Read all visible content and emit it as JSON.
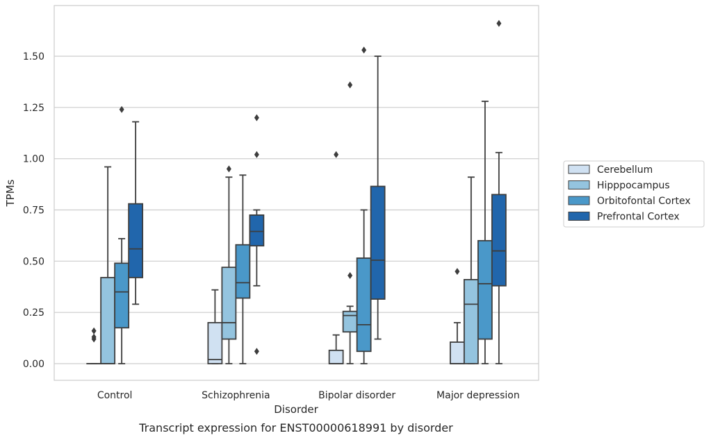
{
  "caption": "Transcript expression for ENST00000618991 by disorder",
  "chart_data": {
    "type": "box",
    "title": "",
    "xlabel": "Disorder",
    "ylabel": "TPMs",
    "ylim": [
      -0.08,
      1.75
    ],
    "yticks": [
      "0.00",
      "0.25",
      "0.50",
      "0.75",
      "1.00",
      "1.25",
      "1.50"
    ],
    "grid": "horizontal",
    "legend_position": "right",
    "categories": [
      "Control",
      "Schizophrenia",
      "Bipolar disorder",
      "Major depression"
    ],
    "series": [
      {
        "name": "Cerebellum",
        "color": "#d0e1f2",
        "boxes": [
          {
            "min": 0,
            "q1": 0,
            "median": 0,
            "q3": 0,
            "max": 0,
            "outliers": [
              0.12,
              0.13,
              0.16
            ]
          },
          {
            "min": 0,
            "q1": 0,
            "median": 0.02,
            "q3": 0.2,
            "max": 0.36,
            "outliers": []
          },
          {
            "min": 0,
            "q1": 0,
            "median": 0,
            "q3": 0.065,
            "max": 0.14,
            "outliers": [
              1.02
            ]
          },
          {
            "min": 0,
            "q1": 0,
            "median": 0,
            "q3": 0.105,
            "max": 0.2,
            "outliers": [
              0.45
            ]
          }
        ]
      },
      {
        "name": "Hipppocampus",
        "color": "#94c4df",
        "boxes": [
          {
            "min": 0,
            "q1": 0,
            "median": 0,
            "q3": 0.42,
            "max": 0.96,
            "outliers": []
          },
          {
            "min": 0,
            "q1": 0.12,
            "median": 0.2,
            "q3": 0.47,
            "max": 0.91,
            "outliers": [
              0.95
            ]
          },
          {
            "min": 0,
            "q1": 0.155,
            "median": 0.235,
            "q3": 0.255,
            "max": 0.28,
            "outliers": [
              0.43,
              1.36
            ]
          },
          {
            "min": 0,
            "q1": 0,
            "median": 0.29,
            "q3": 0.41,
            "max": 0.91,
            "outliers": []
          }
        ]
      },
      {
        "name": "Orbitofontal Cortex",
        "color": "#4a98c9",
        "boxes": [
          {
            "min": 0,
            "q1": 0.175,
            "median": 0.35,
            "q3": 0.49,
            "max": 0.61,
            "outliers": [
              1.24
            ]
          },
          {
            "min": 0,
            "q1": 0.32,
            "median": 0.395,
            "q3": 0.58,
            "max": 0.92,
            "outliers": []
          },
          {
            "min": 0,
            "q1": 0.06,
            "median": 0.19,
            "q3": 0.515,
            "max": 0.75,
            "outliers": [
              1.53
            ]
          },
          {
            "min": 0,
            "q1": 0.12,
            "median": 0.39,
            "q3": 0.6,
            "max": 1.28,
            "outliers": []
          }
        ]
      },
      {
        "name": "Prefrontal Cortex",
        "color": "#2166ac",
        "boxes": [
          {
            "min": 0.29,
            "q1": 0.42,
            "median": 0.56,
            "q3": 0.78,
            "max": 1.18,
            "outliers": []
          },
          {
            "min": 0.38,
            "q1": 0.575,
            "median": 0.645,
            "q3": 0.725,
            "max": 0.75,
            "outliers": [
              0.06,
              1.02,
              1.2
            ]
          },
          {
            "min": 0.12,
            "q1": 0.315,
            "median": 0.505,
            "q3": 0.865,
            "max": 1.5,
            "outliers": []
          },
          {
            "min": 0,
            "q1": 0.38,
            "median": 0.55,
            "q3": 0.825,
            "max": 1.03,
            "outliers": [
              1.66
            ]
          }
        ]
      }
    ]
  }
}
